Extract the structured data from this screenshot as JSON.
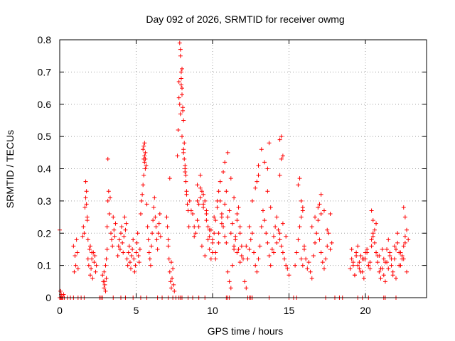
{
  "chart_data": {
    "type": "scatter",
    "title": "Day 092 of 2026, SRMTID for receiver owmg",
    "xlabel": "GPS time / hours",
    "ylabel": "SRMTID / TECUs",
    "xlim": [
      0,
      24
    ],
    "ylim": [
      0,
      0.8
    ],
    "xticks": [
      0,
      5,
      10,
      15,
      20
    ],
    "xtick_labels": [
      "0",
      "5",
      "10",
      "15",
      "20"
    ],
    "yticks": [
      0,
      0.1,
      0.2,
      0.3,
      0.4,
      0.5,
      0.6,
      0.7,
      0.8
    ],
    "ytick_labels": [
      "0",
      "0.1",
      "0.2",
      "0.3",
      "0.4",
      "0.5",
      "0.6",
      "0.7",
      "0.8"
    ],
    "grid": true,
    "marker": "plus",
    "color": "#ff0000",
    "series": [
      {
        "name": "SRMTID",
        "x": [
          0.0,
          0.05,
          0.1,
          0.15,
          0.3,
          0.5,
          0.7,
          0.9,
          1.2,
          1.4,
          1.6,
          2.6,
          2.7,
          2.8,
          3.5,
          4.0,
          4.3,
          4.8,
          5.3,
          5.7,
          6.4,
          6.7,
          7.1,
          7.4,
          7.6,
          7.8,
          7.9,
          8.0,
          8.4,
          8.7,
          9.1,
          9.5,
          10.9,
          11.0,
          11.1,
          12.3,
          12.4,
          12.5,
          12.6,
          13.7,
          15.0,
          15.3,
          15.5,
          17.4,
          18.0,
          18.3,
          18.5,
          19.5,
          19.8,
          20.2,
          21.2,
          21.3,
          22.0,
          0.0,
          0.05,
          0.1,
          0.2,
          0.25,
          0.9,
          0.95,
          1.0,
          1.05,
          1.1,
          1.15,
          1.2,
          1.5,
          1.55,
          1.6,
          1.65,
          1.7,
          1.75,
          1.8,
          1.85,
          1.9,
          1.95,
          2.0,
          2.05,
          2.1,
          2.15,
          2.2,
          2.25,
          2.3,
          2.35,
          2.4,
          1.7,
          1.75,
          1.8,
          1.85,
          2.0,
          2.1,
          2.8,
          2.85,
          2.9,
          2.95,
          3.0,
          3.05,
          3.1,
          3.15,
          3.2,
          3.25,
          3.3,
          3.35,
          3.4,
          3.45,
          3.5,
          3.55,
          3.6,
          3.65,
          3.0,
          3.05,
          3.1,
          3.15,
          2.9,
          2.95,
          3.8,
          3.85,
          3.9,
          3.95,
          4.0,
          4.05,
          4.1,
          4.15,
          4.2,
          4.25,
          4.3,
          4.35,
          4.4,
          4.45,
          4.5,
          4.55,
          4.6,
          4.65,
          4.7,
          4.75,
          4.8,
          4.85,
          4.9,
          4.95,
          5.0,
          5.05,
          5.1,
          5.15,
          5.2,
          5.25,
          5.3,
          5.35,
          5.4,
          5.45,
          5.5,
          5.55,
          5.6,
          5.65,
          5.7,
          5.75,
          5.8,
          5.85,
          5.9,
          5.95,
          6.0,
          6.05,
          6.1,
          6.15,
          6.2,
          6.25,
          6.3,
          6.35,
          6.4,
          6.45,
          6.5,
          6.55,
          6.6,
          5.5,
          5.55,
          5.6,
          5.45,
          5.5,
          5.55,
          5.6,
          7.0,
          7.05,
          7.1,
          7.15,
          7.2,
          7.25,
          7.3,
          7.35,
          7.4,
          7.45,
          7.5,
          7.1,
          7.2,
          7.3,
          7.7,
          7.75,
          7.8,
          7.85,
          7.9,
          7.95,
          8.0,
          8.05,
          8.1,
          8.15,
          8.2,
          8.25,
          8.3,
          8.35,
          8.4,
          8.45,
          8.5,
          7.8,
          7.85,
          7.9,
          7.95,
          8.0,
          8.05,
          8.1,
          8.15,
          8.2,
          8.25,
          8.3,
          8.0,
          8.1,
          8.2,
          7.9,
          7.95,
          8.0,
          8.6,
          8.7,
          8.8,
          8.9,
          9.0,
          9.1,
          9.2,
          9.3,
          9.4,
          9.5,
          9.6,
          9.7,
          9.8,
          9.9,
          10.0,
          10.1,
          10.2,
          10.3,
          10.4,
          10.5,
          10.6,
          10.7,
          10.8,
          10.9,
          11.0,
          11.1,
          11.2,
          11.3,
          11.4,
          11.5,
          11.6,
          11.7,
          11.8,
          11.9,
          12.0,
          9.0,
          9.2,
          9.4,
          9.6,
          9.8,
          10.0,
          10.2,
          10.4,
          10.6,
          10.8,
          11.0,
          11.2,
          11.4,
          11.6,
          11.8,
          9.1,
          9.3,
          9.5,
          9.7,
          9.9,
          10.1,
          10.3,
          10.5,
          10.7,
          10.9,
          11.1,
          11.3,
          11.5,
          11.7,
          11.9,
          8.8,
          9.0,
          9.2,
          9.4,
          9.6,
          9.8,
          10.0,
          10.2,
          10.4,
          10.6,
          10.8,
          11.0,
          11.2,
          11.4,
          11.6,
          11.8,
          12.1,
          12.2,
          12.3,
          12.4,
          12.5,
          12.6,
          12.7,
          12.8,
          12.9,
          13.0,
          13.1,
          13.2,
          13.3,
          13.4,
          13.5,
          13.6,
          13.7,
          13.8,
          13.9,
          14.0,
          14.1,
          14.2,
          14.3,
          14.4,
          14.5,
          14.6,
          14.7,
          14.8,
          14.9,
          15.0,
          12.2,
          12.4,
          12.6,
          12.8,
          13.0,
          13.2,
          13.4,
          13.6,
          13.8,
          14.0,
          14.2,
          14.4,
          14.6,
          14.8,
          14.4,
          14.5,
          14.6,
          13.6,
          13.7,
          14.5,
          14.4,
          12.9,
          13.0,
          15.4,
          15.5,
          15.6,
          15.7,
          15.8,
          15.9,
          16.0,
          16.1,
          16.2,
          16.3,
          16.4,
          16.5,
          16.6,
          16.7,
          16.8,
          16.9,
          17.0,
          17.1,
          17.2,
          17.3,
          17.4,
          17.5,
          17.6,
          17.7,
          17.8,
          15.6,
          15.7,
          15.8,
          15.9,
          16.0,
          16.5,
          16.7,
          16.9,
          17.1,
          17.3,
          17.5,
          17.7,
          15.8,
          15.9,
          17.0,
          17.1,
          19.0,
          19.1,
          19.2,
          19.3,
          19.4,
          19.5,
          19.6,
          19.7,
          19.8,
          19.9,
          20.0,
          20.1,
          20.2,
          20.3,
          20.4,
          20.5,
          20.6,
          20.7,
          20.8,
          20.9,
          21.0,
          21.1,
          21.2,
          21.3,
          21.4,
          21.5,
          21.6,
          21.7,
          21.8,
          21.9,
          22.0,
          22.1,
          22.2,
          22.3,
          22.4,
          22.5,
          22.6,
          22.7,
          22.8,
          19.2,
          19.4,
          19.6,
          19.8,
          20.0,
          20.2,
          20.4,
          20.6,
          20.8,
          21.0,
          21.2,
          21.4,
          21.6,
          21.8,
          22.0,
          22.2,
          22.4,
          22.6,
          19.1,
          19.3,
          19.5,
          19.7,
          19.9,
          20.1,
          20.3,
          20.5,
          20.7,
          20.9,
          21.1,
          21.3,
          21.5,
          21.7,
          21.9,
          22.1,
          22.3,
          22.5,
          22.7,
          22.5,
          22.6,
          20.4,
          20.5
        ],
        "y": [
          0.0,
          0.0,
          0.0,
          0.0,
          0.0,
          0.0,
          0.0,
          0.0,
          0.0,
          0.0,
          0.0,
          0.0,
          0.0,
          0.0,
          0.0,
          0.0,
          0.0,
          0.0,
          0.0,
          0.0,
          0.0,
          0.0,
          0.0,
          0.0,
          0.0,
          0.0,
          0.0,
          0.0,
          0.0,
          0.0,
          0.0,
          0.0,
          0.0,
          0.0,
          0.0,
          0.0,
          0.0,
          0.0,
          0.0,
          0.0,
          0.0,
          0.0,
          0.0,
          0.0,
          0.0,
          0.0,
          0.0,
          0.0,
          0.0,
          0.0,
          0.0,
          0.0,
          0.0,
          0.21,
          0.02,
          0.01,
          0.0,
          0.01,
          0.16,
          0.08,
          0.13,
          0.1,
          0.18,
          0.14,
          0.09,
          0.19,
          0.22,
          0.2,
          0.28,
          0.31,
          0.33,
          0.25,
          0.12,
          0.1,
          0.15,
          0.07,
          0.09,
          0.12,
          0.06,
          0.14,
          0.11,
          0.13,
          0.08,
          0.1,
          0.36,
          0.29,
          0.24,
          0.18,
          0.16,
          0.14,
          0.07,
          0.05,
          0.03,
          0.04,
          0.02,
          0.06,
          0.22,
          0.3,
          0.33,
          0.26,
          0.31,
          0.2,
          0.18,
          0.16,
          0.25,
          0.21,
          0.19,
          0.23,
          0.1,
          0.12,
          0.15,
          0.43,
          0.08,
          0.05,
          0.13,
          0.16,
          0.18,
          0.15,
          0.2,
          0.22,
          0.17,
          0.14,
          0.19,
          0.25,
          0.21,
          0.23,
          0.12,
          0.1,
          0.14,
          0.16,
          0.11,
          0.09,
          0.13,
          0.15,
          0.18,
          0.12,
          0.08,
          0.1,
          0.14,
          0.17,
          0.2,
          0.13,
          0.11,
          0.15,
          0.26,
          0.3,
          0.32,
          0.35,
          0.43,
          0.48,
          0.45,
          0.41,
          0.29,
          0.22,
          0.18,
          0.14,
          0.12,
          0.1,
          0.16,
          0.2,
          0.24,
          0.28,
          0.31,
          0.25,
          0.22,
          0.18,
          0.15,
          0.2,
          0.23,
          0.26,
          0.19,
          0.38,
          0.42,
          0.4,
          0.46,
          0.47,
          0.44,
          0.43,
          0.25,
          0.22,
          0.18,
          0.12,
          0.08,
          0.05,
          0.03,
          0.06,
          0.09,
          0.04,
          0.02,
          0.16,
          0.37,
          0.11,
          0.44,
          0.52,
          0.67,
          0.79,
          0.75,
          0.68,
          0.63,
          0.59,
          0.55,
          0.48,
          0.41,
          0.38,
          0.33,
          0.29,
          0.27,
          0.22,
          0.3,
          0.62,
          0.6,
          0.57,
          0.66,
          0.71,
          0.58,
          0.46,
          0.43,
          0.4,
          0.36,
          0.32,
          0.5,
          0.45,
          0.39,
          0.77,
          0.7,
          0.65,
          0.27,
          0.26,
          0.22,
          0.2,
          0.24,
          0.29,
          0.31,
          0.33,
          0.28,
          0.3,
          0.26,
          0.22,
          0.15,
          0.12,
          0.18,
          0.2,
          0.24,
          0.28,
          0.33,
          0.3,
          0.25,
          0.22,
          0.19,
          0.17,
          0.08,
          0.05,
          0.03,
          0.1,
          0.15,
          0.19,
          0.24,
          0.28,
          0.2,
          0.16,
          0.12,
          0.35,
          0.38,
          0.32,
          0.27,
          0.21,
          0.17,
          0.14,
          0.2,
          0.26,
          0.29,
          0.25,
          0.2,
          0.16,
          0.14,
          0.11,
          0.22,
          0.16,
          0.13,
          0.18,
          0.21,
          0.25,
          0.3,
          0.36,
          0.39,
          0.33,
          0.27,
          0.23,
          0.18,
          0.15,
          0.13,
          0.19,
          0.3,
          0.34,
          0.29,
          0.24,
          0.19,
          0.14,
          0.12,
          0.17,
          0.23,
          0.42,
          0.45,
          0.37,
          0.31,
          0.26,
          0.22,
          0.05,
          0.03,
          0.12,
          0.15,
          0.18,
          0.2,
          0.14,
          0.1,
          0.08,
          0.12,
          0.16,
          0.22,
          0.27,
          0.24,
          0.2,
          0.17,
          0.13,
          0.1,
          0.15,
          0.19,
          0.22,
          0.25,
          0.21,
          0.18,
          0.16,
          0.14,
          0.12,
          0.1,
          0.09,
          0.07,
          0.16,
          0.22,
          0.3,
          0.34,
          0.38,
          0.46,
          0.42,
          0.33,
          0.28,
          0.14,
          0.17,
          0.2,
          0.23,
          0.19,
          0.49,
          0.5,
          0.44,
          0.4,
          0.48,
          0.43,
          0.38,
          0.36,
          0.41,
          0.1,
          0.14,
          0.18,
          0.22,
          0.25,
          0.28,
          0.15,
          0.12,
          0.09,
          0.11,
          0.08,
          0.06,
          0.13,
          0.17,
          0.2,
          0.24,
          0.18,
          0.14,
          0.11,
          0.09,
          0.12,
          0.16,
          0.2,
          0.26,
          0.17,
          0.35,
          0.37,
          0.3,
          0.27,
          0.16,
          0.22,
          0.25,
          0.28,
          0.32,
          0.27,
          0.21,
          0.15,
          0.12,
          0.1,
          0.29,
          0.26,
          0.09,
          0.12,
          0.1,
          0.07,
          0.14,
          0.16,
          0.11,
          0.13,
          0.08,
          0.06,
          0.12,
          0.15,
          0.1,
          0.09,
          0.18,
          0.2,
          0.17,
          0.14,
          0.11,
          0.08,
          0.06,
          0.09,
          0.12,
          0.05,
          0.15,
          0.18,
          0.13,
          0.1,
          0.07,
          0.12,
          0.15,
          0.17,
          0.14,
          0.1,
          0.12,
          0.16,
          0.19,
          0.21,
          0.18,
          0.11,
          0.13,
          0.09,
          0.12,
          0.14,
          0.1,
          0.16,
          0.21,
          0.13,
          0.09,
          0.07,
          0.11,
          0.14,
          0.08,
          0.06,
          0.1,
          0.13,
          0.17,
          0.15,
          0.07,
          0.1,
          0.08,
          0.12,
          0.14,
          0.11,
          0.19,
          0.23,
          0.13,
          0.15,
          0.11,
          0.09,
          0.12,
          0.16,
          0.2,
          0.14,
          0.12,
          0.08,
          0.28,
          0.25,
          0.27,
          0.24
        ]
      }
    ]
  }
}
